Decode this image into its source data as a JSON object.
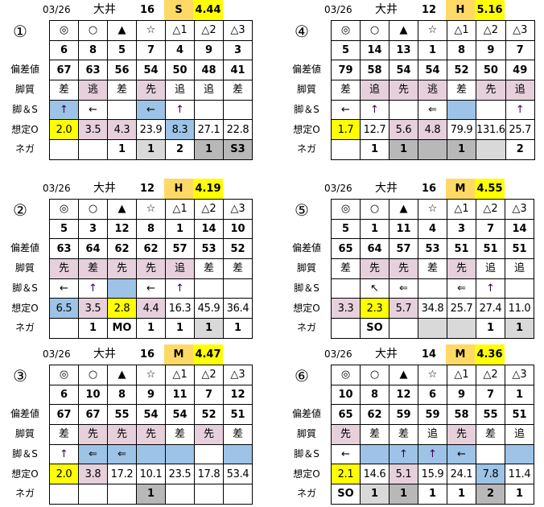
{
  "colors": {
    "p": "#e6d0dc",
    "b": "#9dc3e6",
    "y": "#ffff00",
    "lg": "#d9d9d9",
    "dg": "#b8b8b8",
    "grade": "#ffd966",
    "value": "#ffff00"
  },
  "row_labels": [
    "偏差値",
    "脚質",
    "脚＆S",
    "想定O",
    "ネガ"
  ],
  "marks": [
    "◎",
    "○",
    "▲",
    "☆",
    "△1",
    "△2",
    "△3"
  ],
  "panels": [
    {
      "num": "①",
      "date": "03/26",
      "venue": "大井",
      "count": "16",
      "grade": "S",
      "value": "4.44",
      "horses": [
        "6",
        "8",
        "5",
        "7",
        "4",
        "9",
        "3"
      ],
      "hensa": [
        "67",
        "63",
        "56",
        "54",
        "50",
        "48",
        "41"
      ],
      "kyaku": [
        [
          "差",
          ""
        ],
        [
          "逃",
          "p"
        ],
        [
          "差",
          ""
        ],
        [
          "先",
          "p"
        ],
        [
          "追",
          ""
        ],
        [
          "追",
          ""
        ],
        [
          "差",
          ""
        ]
      ],
      "ashi": [
        [
          "↑",
          "b"
        ],
        [
          "←",
          ""
        ],
        [
          "",
          ""
        ],
        [
          "←",
          "b"
        ],
        [
          "↑",
          ""
        ],
        [
          "",
          ""
        ],
        [
          "",
          ""
        ]
      ],
      "odds": [
        [
          "2.0",
          "y"
        ],
        [
          "3.5",
          "p"
        ],
        [
          "4.3",
          "p"
        ],
        [
          "23.9",
          ""
        ],
        [
          "8.3",
          "b"
        ],
        [
          "27.1",
          ""
        ],
        [
          "22.8",
          ""
        ]
      ],
      "nega": [
        [
          "",
          ""
        ],
        [
          "",
          ""
        ],
        [
          "1",
          ""
        ],
        [
          "1",
          "lg"
        ],
        [
          "2",
          ""
        ],
        [
          "1",
          "dg"
        ],
        [
          "S3",
          "dg"
        ]
      ]
    },
    {
      "num": "②",
      "date": "03/26",
      "venue": "大井",
      "count": "12",
      "grade": "H",
      "value": "4.19",
      "horses": [
        "5",
        "3",
        "12",
        "8",
        "1",
        "14",
        "10"
      ],
      "hensa": [
        "63",
        "64",
        "62",
        "62",
        "57",
        "53",
        "52"
      ],
      "kyaku": [
        [
          "先",
          "p"
        ],
        [
          "差",
          "p"
        ],
        [
          "先",
          "p"
        ],
        [
          "先",
          "p"
        ],
        [
          "追",
          "p"
        ],
        [
          "差",
          ""
        ],
        [
          "差",
          ""
        ]
      ],
      "ashi": [
        [
          "←",
          ""
        ],
        [
          "↑",
          ""
        ],
        [
          "",
          "b"
        ],
        [
          "←",
          ""
        ],
        [
          "↑",
          ""
        ],
        [
          "",
          ""
        ],
        [
          "",
          ""
        ]
      ],
      "odds": [
        [
          "6.5",
          "b"
        ],
        [
          "3.5",
          "p"
        ],
        [
          "2.8",
          "y"
        ],
        [
          "4.4",
          "p"
        ],
        [
          "16.3",
          ""
        ],
        [
          "45.9",
          ""
        ],
        [
          "36.4",
          ""
        ]
      ],
      "nega": [
        [
          "",
          ""
        ],
        [
          "1",
          ""
        ],
        [
          "MO",
          ""
        ],
        [
          "1",
          ""
        ],
        [
          "1",
          ""
        ],
        [
          "1",
          "lg"
        ],
        [
          "1",
          ""
        ]
      ]
    },
    {
      "num": "③",
      "date": "03/26",
      "venue": "大井",
      "count": "16",
      "grade": "M",
      "value": "4.47",
      "horses": [
        "6",
        "10",
        "8",
        "9",
        "11",
        "7",
        "12"
      ],
      "hensa": [
        "67",
        "67",
        "55",
        "54",
        "54",
        "52",
        "51"
      ],
      "kyaku": [
        [
          "差",
          ""
        ],
        [
          "先",
          "p"
        ],
        [
          "先",
          "p"
        ],
        [
          "先",
          "p"
        ],
        [
          "差",
          ""
        ],
        [
          "先",
          "p"
        ],
        [
          "差",
          ""
        ]
      ],
      "ashi": [
        [
          "↑",
          ""
        ],
        [
          "⇐",
          "b"
        ],
        [
          "⇐",
          "b"
        ],
        [
          "",
          "b"
        ],
        [
          "",
          "b"
        ],
        [
          "",
          ""
        ],
        [
          "",
          "b"
        ]
      ],
      "odds": [
        [
          "2.0",
          "y"
        ],
        [
          "3.8",
          "p"
        ],
        [
          "17.2",
          ""
        ],
        [
          "10.1",
          ""
        ],
        [
          "23.5",
          ""
        ],
        [
          "17.8",
          ""
        ],
        [
          "53.4",
          ""
        ]
      ],
      "nega": [
        [
          "",
          ""
        ],
        [
          "",
          ""
        ],
        [
          "",
          ""
        ],
        [
          "1",
          "dg"
        ],
        [
          "",
          ""
        ],
        [
          "",
          ""
        ],
        [
          "",
          ""
        ]
      ]
    },
    {
      "num": "④",
      "date": "03/26",
      "venue": "大井",
      "count": "12",
      "grade": "H",
      "value": "5.16",
      "horses": [
        "5",
        "14",
        "13",
        "1",
        "8",
        "9",
        "7"
      ],
      "hensa": [
        "79",
        "58",
        "54",
        "54",
        "52",
        "50",
        "49"
      ],
      "kyaku": [
        [
          "差",
          ""
        ],
        [
          "追",
          "p"
        ],
        [
          "先",
          "p"
        ],
        [
          "逃",
          "p"
        ],
        [
          "差",
          ""
        ],
        [
          "先",
          "p"
        ],
        [
          "追",
          "p"
        ]
      ],
      "ashi": [
        [
          "←",
          ""
        ],
        [
          "↑",
          ""
        ],
        [
          "",
          ""
        ],
        [
          "⇐",
          ""
        ],
        [
          "",
          "b"
        ],
        [
          "",
          ""
        ],
        [
          "↑",
          ""
        ]
      ],
      "odds": [
        [
          "1.7",
          "y"
        ],
        [
          "12.7",
          ""
        ],
        [
          "5.6",
          "p"
        ],
        [
          "4.8",
          "p"
        ],
        [
          "79.9",
          ""
        ],
        [
          "131.6",
          ""
        ],
        [
          "25.7",
          ""
        ]
      ],
      "nega": [
        [
          "",
          ""
        ],
        [
          "1",
          ""
        ],
        [
          "1",
          "dg"
        ],
        [
          "",
          "dg"
        ],
        [
          "1",
          "dg"
        ],
        [
          "",
          "lg"
        ],
        [
          "2",
          ""
        ]
      ]
    },
    {
      "num": "⑤",
      "date": "03/26",
      "venue": "大井",
      "count": "16",
      "grade": "M",
      "value": "4.55",
      "horses": [
        "5",
        "1",
        "11",
        "4",
        "3",
        "7",
        "14"
      ],
      "hensa": [
        "65",
        "64",
        "57",
        "53",
        "51",
        "51",
        "51"
      ],
      "kyaku": [
        [
          "差",
          ""
        ],
        [
          "先",
          "p"
        ],
        [
          "先",
          "p"
        ],
        [
          "差",
          ""
        ],
        [
          "先",
          "p"
        ],
        [
          "追",
          ""
        ],
        [
          "追",
          ""
        ]
      ],
      "ashi": [
        [
          "",
          ""
        ],
        [
          "↖",
          ""
        ],
        [
          "⇐",
          ""
        ],
        [
          "",
          ""
        ],
        [
          "⇐",
          ""
        ],
        [
          "↑",
          ""
        ],
        [
          "",
          ""
        ]
      ],
      "odds": [
        [
          "3.3",
          "p"
        ],
        [
          "2.3",
          "y"
        ],
        [
          "5.7",
          "p"
        ],
        [
          "34.8",
          ""
        ],
        [
          "25.7",
          ""
        ],
        [
          "27.4",
          ""
        ],
        [
          "11.0",
          ""
        ]
      ],
      "nega": [
        [
          "",
          ""
        ],
        [
          "SO",
          ""
        ],
        [
          "",
          ""
        ],
        [
          "",
          "lg"
        ],
        [
          "",
          "lg"
        ],
        [
          "1",
          ""
        ],
        [
          "1",
          "lg"
        ]
      ]
    },
    {
      "num": "⑥",
      "date": "03/26",
      "venue": "大井",
      "count": "14",
      "grade": "M",
      "value": "4.36",
      "horses": [
        "10",
        "8",
        "12",
        "6",
        "9",
        "7",
        "1"
      ],
      "hensa": [
        "65",
        "62",
        "59",
        "59",
        "58",
        "55",
        "51"
      ],
      "kyaku": [
        [
          "先",
          "p"
        ],
        [
          "差",
          ""
        ],
        [
          "差",
          ""
        ],
        [
          "追",
          ""
        ],
        [
          "先",
          "p"
        ],
        [
          "差",
          ""
        ],
        [
          "追",
          ""
        ]
      ],
      "ashi": [
        [
          "←",
          ""
        ],
        [
          "",
          "b"
        ],
        [
          "↑",
          "b"
        ],
        [
          "↑",
          "b"
        ],
        [
          "←",
          "b"
        ],
        [
          "",
          ""
        ],
        [
          "",
          "b"
        ]
      ],
      "odds": [
        [
          "2.1",
          "y"
        ],
        [
          "14.6",
          ""
        ],
        [
          "5.1",
          "p"
        ],
        [
          "15.9",
          ""
        ],
        [
          "24.1",
          ""
        ],
        [
          "7.8",
          "b"
        ],
        [
          "11.4",
          ""
        ]
      ],
      "nega": [
        [
          "SO",
          ""
        ],
        [
          "1",
          "lg"
        ],
        [
          "1",
          "dg"
        ],
        [
          "1",
          ""
        ],
        [
          "1",
          ""
        ],
        [
          "2",
          "dg"
        ],
        [
          "1",
          ""
        ]
      ]
    }
  ]
}
